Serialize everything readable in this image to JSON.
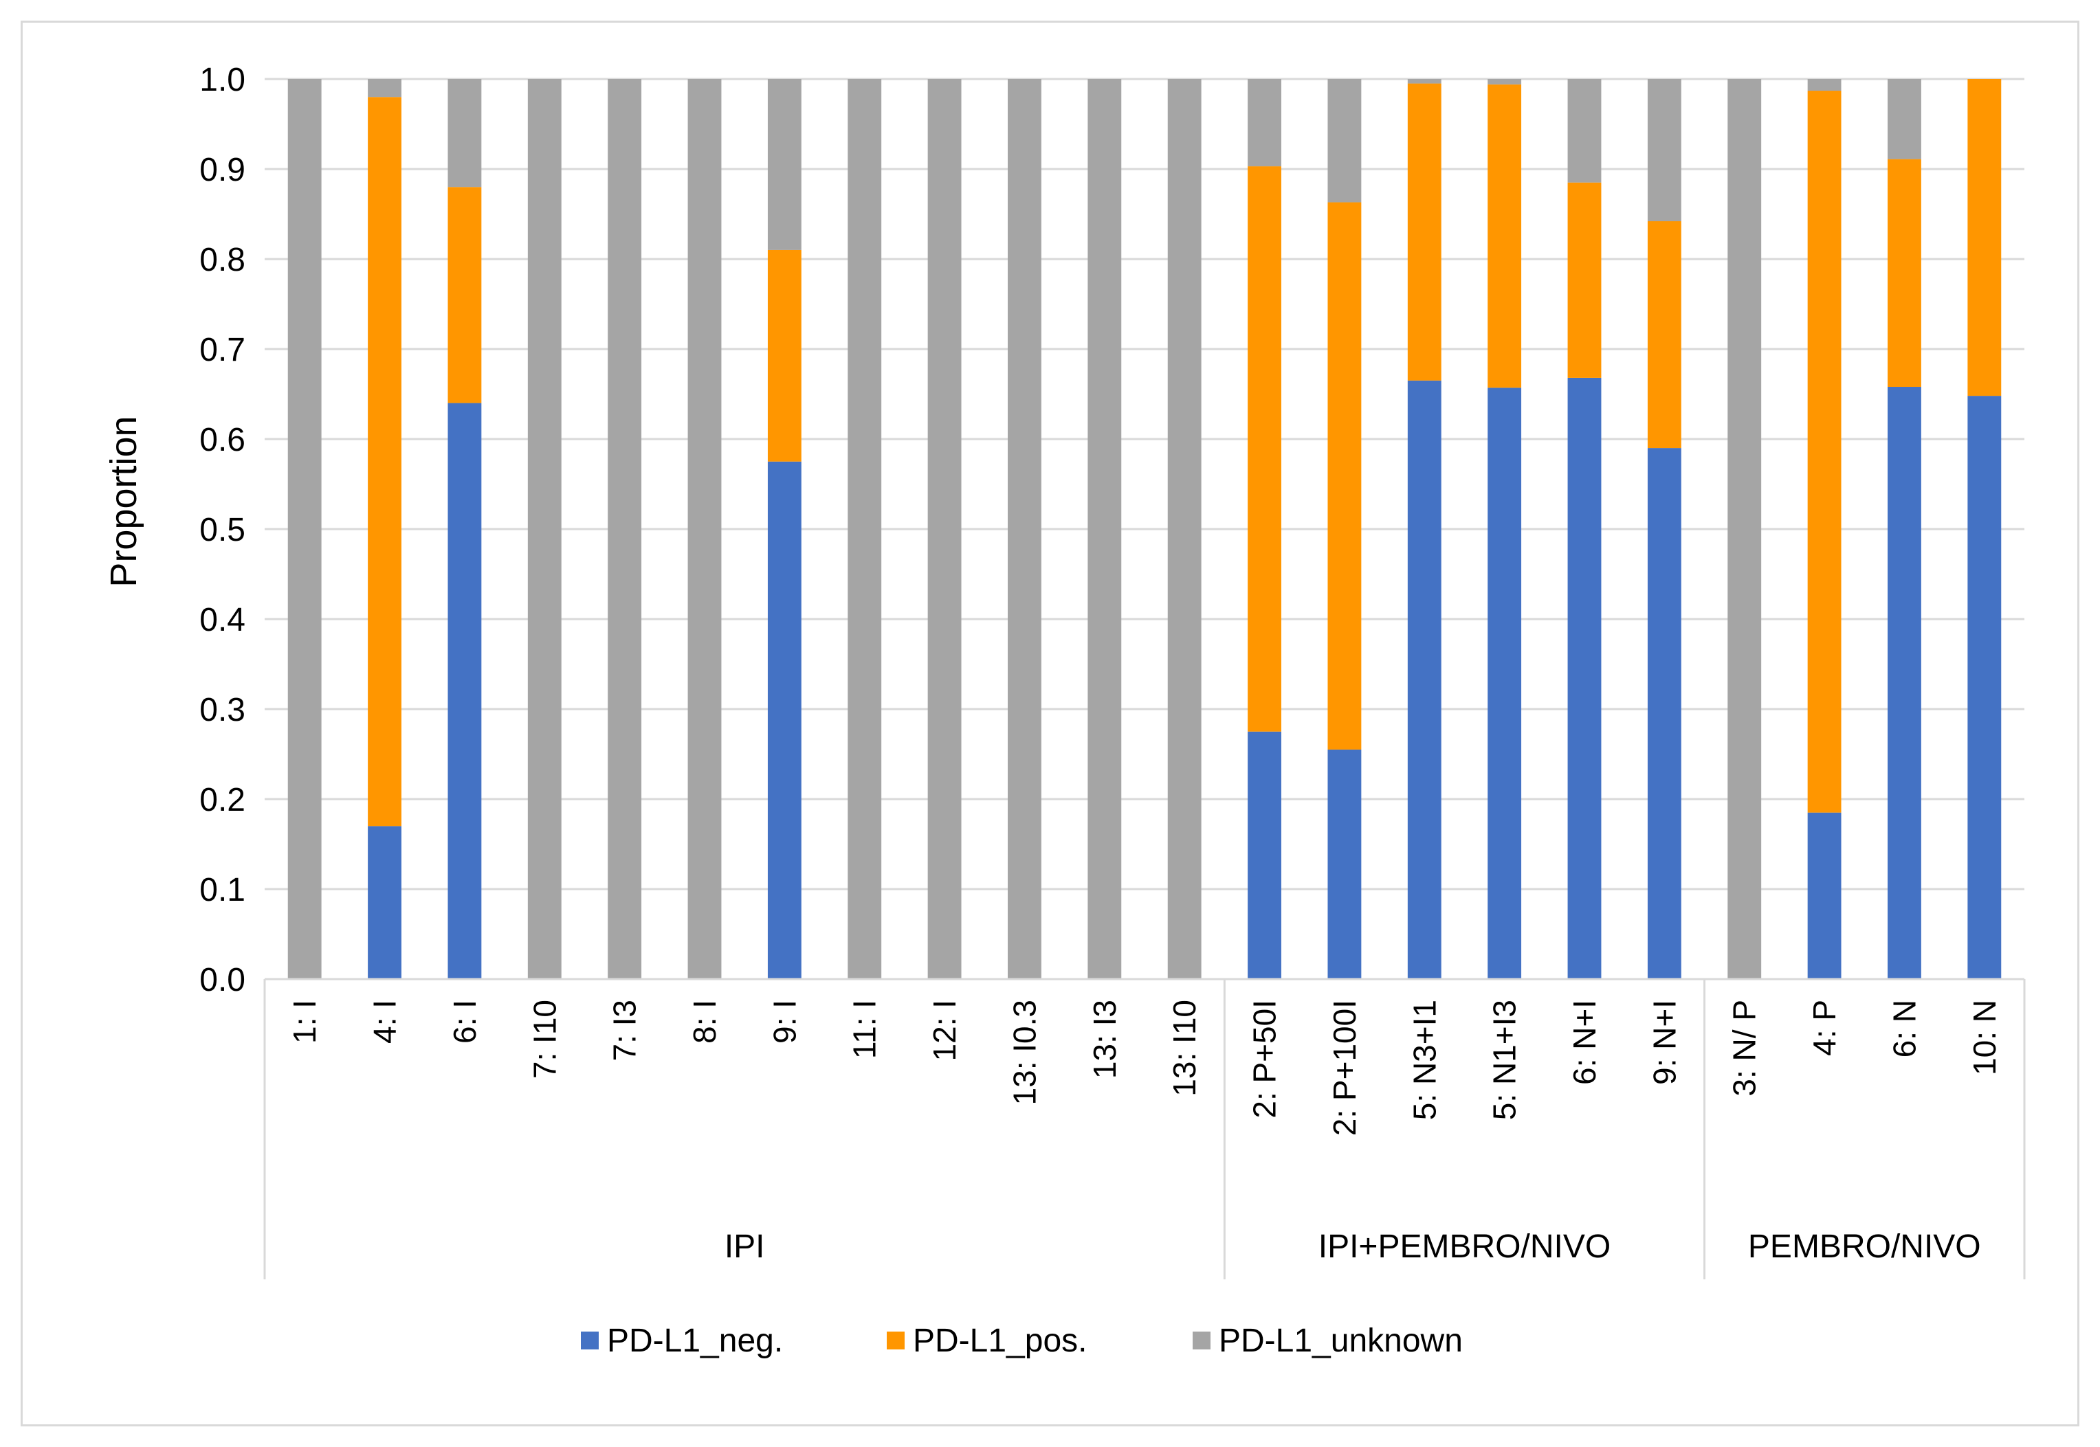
{
  "chart_data": {
    "type": "bar",
    "stacked": true,
    "title": "",
    "xlabel": "",
    "ylabel": "Proportion",
    "ylim": [
      0,
      1.0
    ],
    "yticks": [
      "0.0",
      "0.1",
      "0.2",
      "0.3",
      "0.4",
      "0.5",
      "0.6",
      "0.7",
      "0.8",
      "0.9",
      "1.0"
    ],
    "grid": true,
    "legend_position": "bottom",
    "categories": [
      "1: I",
      "4: I",
      "6: I",
      "7: I10",
      "7: I3",
      "8: I",
      "9: I",
      "11: I",
      "12: I",
      "13: I0.3",
      "13: I3",
      "13: I10",
      "2: P+50I",
      "2: P+100I",
      "5: N3+I1",
      "5: N1+I3",
      "6: N+I",
      "9: N+I",
      "3: N/ P",
      "4: P",
      "6: N",
      "10: N"
    ],
    "groups": [
      {
        "label": "IPI",
        "start": 0,
        "count": 12
      },
      {
        "label": "IPI+PEMBRO/NIVO",
        "start": 12,
        "count": 6
      },
      {
        "label": "PEMBRO/NIVO",
        "start": 18,
        "count": 4
      }
    ],
    "series": [
      {
        "name": "PD-L1_neg.",
        "color": "#4472c4",
        "values": [
          0,
          0.17,
          0.64,
          0,
          0,
          0,
          0.575,
          0,
          0,
          0,
          0,
          0,
          0.275,
          0.255,
          0.665,
          0.657,
          0.668,
          0.59,
          0,
          0.185,
          0.658,
          0.648
        ]
      },
      {
        "name": "PD-L1_pos.",
        "color": "#ff9600",
        "values": [
          0,
          0.81,
          0.24,
          0,
          0,
          0,
          0.235,
          0,
          0,
          0,
          0,
          0,
          0.628,
          0.608,
          0.33,
          0.337,
          0.217,
          0.252,
          0,
          0.802,
          0.253,
          0.352
        ]
      },
      {
        "name": "PD-L1_unknown",
        "color": "#a5a5a5",
        "values": [
          1.0,
          0.02,
          0.12,
          1.0,
          1.0,
          1.0,
          0.19,
          1.0,
          1.0,
          1.0,
          1.0,
          1.0,
          0.097,
          0.137,
          0.005,
          0.006,
          0.115,
          0.158,
          1.0,
          0.013,
          0.089,
          0.0
        ]
      }
    ]
  }
}
